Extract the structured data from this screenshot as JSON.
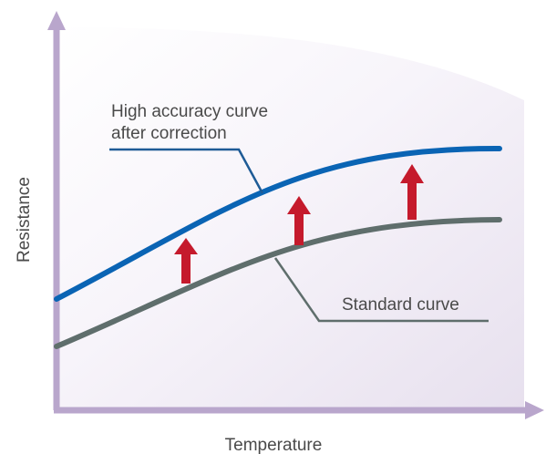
{
  "chart_data": {
    "type": "line",
    "title": "",
    "xlabel": "Temperature",
    "ylabel": "Resistance",
    "grid": false,
    "legend": "none",
    "series": [
      {
        "annotation_lines": [
          "High accuracy curve",
          "after correction"
        ],
        "color": "#0a64b4"
      },
      {
        "annotation_lines": [
          "Standard curve"
        ],
        "color": "#5f6e6c"
      }
    ],
    "correction_arrow_count": 3,
    "colors": {
      "axis": "#b9a6cc",
      "arrow": "#c51a2c",
      "leader": "#1e5b96",
      "leader_standard": "#5f6e6c"
    }
  }
}
